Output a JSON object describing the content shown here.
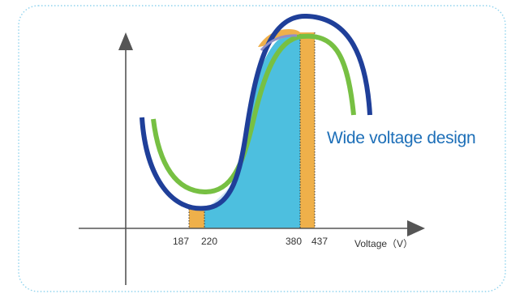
{
  "figure": {
    "annotation": "Wide voltage design",
    "x_axis_title": "Voltage（V）",
    "tick_labels": [
      "187",
      "220",
      "380",
      "437"
    ]
  },
  "colors": {
    "frame": "#8fd3ee",
    "wide_curve": "#1f3f99",
    "standard_curve": "#77c043",
    "operating_area": "#4dbfdf",
    "light_area": "#cfe6f5",
    "extended_margin": "#efb04a",
    "annotation_text": "#1d6fb8"
  }
}
